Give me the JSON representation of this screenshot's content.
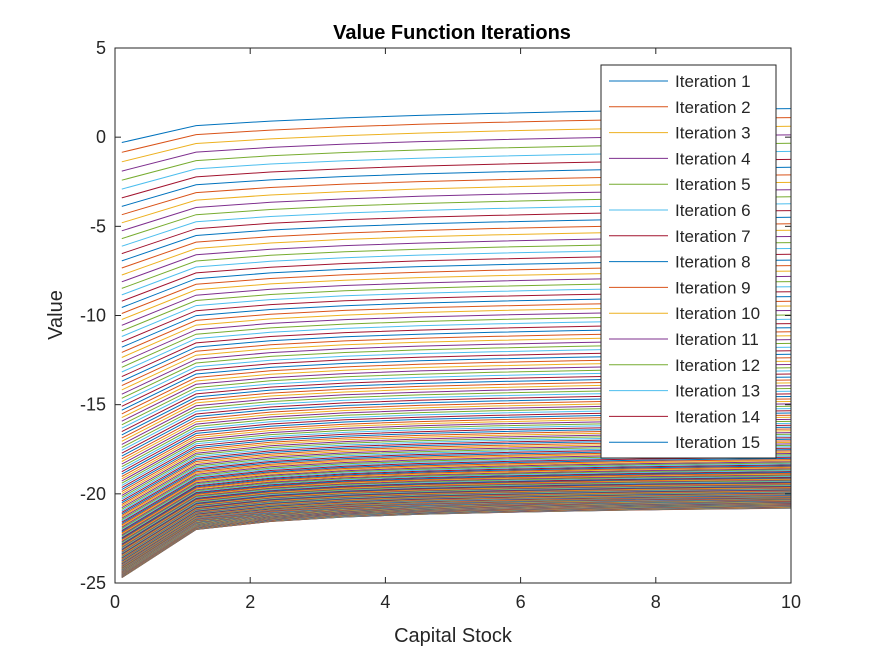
{
  "chart_data": {
    "type": "line",
    "title": "Value Function Iterations",
    "xlabel": "Capital Stock",
    "ylabel": "Value",
    "xlim": [
      0,
      10
    ],
    "ylim": [
      -25,
      5
    ],
    "xticks": [
      0,
      2,
      4,
      6,
      8,
      10
    ],
    "yticks": [
      -25,
      -20,
      -15,
      -10,
      -5,
      0,
      5
    ],
    "xtick_labels": [
      "0",
      "2",
      "4",
      "6",
      "8",
      "10"
    ],
    "ytick_labels": [
      "-25",
      "-20",
      "-15",
      "-10",
      "-5",
      "0",
      "5"
    ],
    "grid": false,
    "legend_position": "top-right",
    "x": [
      0.1,
      1.2,
      2.3,
      3.4,
      4.5,
      5.6,
      6.7,
      7.8,
      8.9,
      10.0
    ],
    "curve_shape_note_free": true,
    "first_iteration_endpoints": {
      "y_at_x0_1": -0.3,
      "y_at_x10": 1.6
    },
    "last_iteration_endpoints": {
      "y_at_x0_1": -24.7,
      "y_at_x10": -20.8
    },
    "first_iteration_values": [
      -0.3,
      0.65,
      0.9,
      1.08,
      1.22,
      1.33,
      1.42,
      1.5,
      1.56,
      1.6
    ],
    "last_iteration_values": [
      -24.7,
      -22.0,
      -21.55,
      -21.3,
      -21.15,
      -21.05,
      -20.97,
      -20.9,
      -20.85,
      -20.8
    ],
    "color_cycle": [
      "#0072BD",
      "#D95319",
      "#EDB120",
      "#7E2F8E",
      "#77AC30",
      "#4DBEEE",
      "#A2142F"
    ],
    "series": [
      {
        "name": "Iteration 1"
      },
      {
        "name": "Iteration 2"
      },
      {
        "name": "Iteration 3"
      },
      {
        "name": "Iteration 4"
      },
      {
        "name": "Iteration 5"
      },
      {
        "name": "Iteration 6"
      },
      {
        "name": "Iteration 7"
      },
      {
        "name": "Iteration 8"
      },
      {
        "name": "Iteration 9"
      },
      {
        "name": "Iteration 10"
      },
      {
        "name": "Iteration 11"
      },
      {
        "name": "Iteration 12"
      },
      {
        "name": "Iteration 13"
      },
      {
        "name": "Iteration 14"
      },
      {
        "name": "Iteration 15"
      }
    ]
  }
}
